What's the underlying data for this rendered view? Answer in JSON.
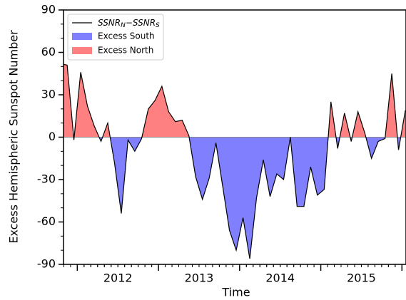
{
  "chart_data": {
    "type": "line-fill",
    "xlabel": "Time",
    "ylabel": "Excess Hemispheric Sunspot Number",
    "x": [
      2011.792,
      2011.875,
      2011.958,
      2012.042,
      2012.125,
      2012.208,
      2012.292,
      2012.375,
      2012.458,
      2012.542,
      2012.625,
      2012.708,
      2012.792,
      2012.875,
      2012.958,
      2013.042,
      2013.125,
      2013.208,
      2013.292,
      2013.375,
      2013.458,
      2013.542,
      2013.625,
      2013.708,
      2013.792,
      2013.875,
      2013.958,
      2014.042,
      2014.125,
      2014.208,
      2014.292,
      2014.375,
      2014.458,
      2014.542,
      2014.625,
      2014.708,
      2014.792,
      2014.875,
      2014.958,
      2015.042,
      2015.125,
      2015.208,
      2015.292,
      2015.375,
      2015.458,
      2015.542,
      2015.625,
      2015.708,
      2015.792,
      2015.875,
      2015.958,
      2016.042
    ],
    "series": [
      {
        "name": "SSNR_N−SSNR_S",
        "color": "#000000",
        "values": [
          52,
          51,
          -2,
          46,
          22,
          8,
          -3,
          10,
          -18,
          -54,
          -2,
          -10,
          -1,
          20,
          26,
          36,
          18,
          11,
          12,
          1,
          -28,
          -44,
          -29,
          -4,
          -35,
          -66,
          -80,
          -57,
          -86,
          -43,
          -16,
          -42,
          -26,
          -30,
          0,
          -49,
          -49,
          -21,
          -41,
          -37,
          25,
          -8,
          17,
          -3,
          18,
          3,
          -15,
          -3,
          -1,
          45,
          -9,
          19
        ]
      }
    ],
    "fills": [
      {
        "name": "Excess South",
        "color": "#8080ff",
        "side": "below"
      },
      {
        "name": "Excess North",
        "color": "#ff8080",
        "side": "above"
      }
    ],
    "zero_line_color": "#888888",
    "xlim": [
      2011.83,
      2016.05
    ],
    "year_ticks": [
      2012,
      2013,
      2014,
      2015,
      2016
    ],
    "xticks": [
      {
        "value": 2012.5,
        "label": "2012"
      },
      {
        "value": 2013.5,
        "label": "2013"
      },
      {
        "value": 2014.5,
        "label": "2014"
      },
      {
        "value": 2015.5,
        "label": "2015"
      }
    ],
    "ylim": [
      -90,
      90
    ],
    "yticks": [
      -90,
      -60,
      -30,
      0,
      30,
      60,
      90
    ],
    "legend": "upper left"
  }
}
